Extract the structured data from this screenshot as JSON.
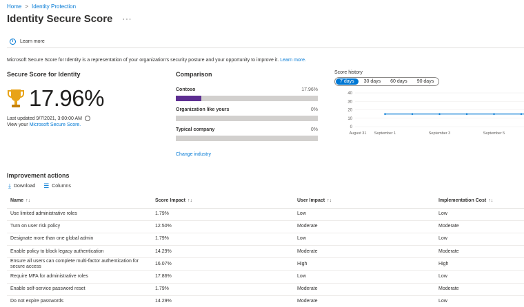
{
  "breadcrumb": {
    "items": [
      "Home",
      "Identity Protection"
    ],
    "separator": ">"
  },
  "page": {
    "title": "Identity Secure Score",
    "more": "···"
  },
  "commandbar": {
    "learn_more": "Learn more"
  },
  "description": {
    "text": "Microsoft Secure Score for Identity is a representation of your organization's security posture and your opportunity to improve it.",
    "link": "Learn more."
  },
  "score": {
    "heading": "Secure Score for Identity",
    "value": "17.96%",
    "last_updated": "Last updated 9/7/2021, 3:00:00 AM",
    "view_prefix": "View your",
    "view_link": "Microsoft Secure Score."
  },
  "comparison": {
    "heading": "Comparison",
    "items": [
      {
        "label": "Contoso",
        "value": "17.96%",
        "fraction": 0.1796
      },
      {
        "label": "Organization like yours",
        "value": "0%",
        "fraction": 0
      },
      {
        "label": "Typical company",
        "value": "0%",
        "fraction": 0
      }
    ],
    "change_industry": "Change industry"
  },
  "history": {
    "title": "Score history",
    "ranges": [
      "7 days",
      "30 days",
      "60 days",
      "90 days"
    ],
    "active_range": "7 days"
  },
  "chart_data": {
    "type": "line",
    "x": [
      "August 31",
      "September 1",
      "September 2",
      "September 3",
      "September 4",
      "September 5",
      "September 6"
    ],
    "xtick_labels": [
      "August 31",
      "September 1",
      "September 3",
      "September 5"
    ],
    "series": [
      {
        "values": [
          null,
          15,
          15,
          15,
          15,
          15,
          15
        ]
      }
    ],
    "yticks": [
      0,
      10,
      20,
      30,
      40
    ],
    "ylim": [
      0,
      40
    ],
    "color": "#0078d4"
  },
  "improvement": {
    "heading": "Improvement actions",
    "download": "Download",
    "columns": "Columns",
    "headers": [
      "Name",
      "Score Impact",
      "User Impact",
      "Implementation Cost"
    ],
    "sort_glyph": "↑↓",
    "rows": [
      [
        "Use limited administrative roles",
        "1.79%",
        "Low",
        "Low"
      ],
      [
        "Turn on user risk policy",
        "12.50%",
        "Moderate",
        "Moderate"
      ],
      [
        "Designate more than one global admin",
        "1.79%",
        "Low",
        "Low"
      ],
      [
        "Enable policy to block legacy authentication",
        "14.29%",
        "Moderate",
        "Moderate"
      ],
      [
        "Ensure all users can complete multi-factor authentication for secure access",
        "16.07%",
        "High",
        "High"
      ],
      [
        "Require MFA for administrative roles",
        "17.86%",
        "Low",
        "Low"
      ],
      [
        "Enable self-service password reset",
        "1.79%",
        "Moderate",
        "Moderate"
      ],
      [
        "Do not expire passwords",
        "14.29%",
        "Moderate",
        "Low"
      ]
    ]
  },
  "colors": {
    "accent": "#0078d4",
    "bar_fill": "#5c2d91",
    "bar_track": "#d2d0ce",
    "trophy": "#e8a317"
  }
}
